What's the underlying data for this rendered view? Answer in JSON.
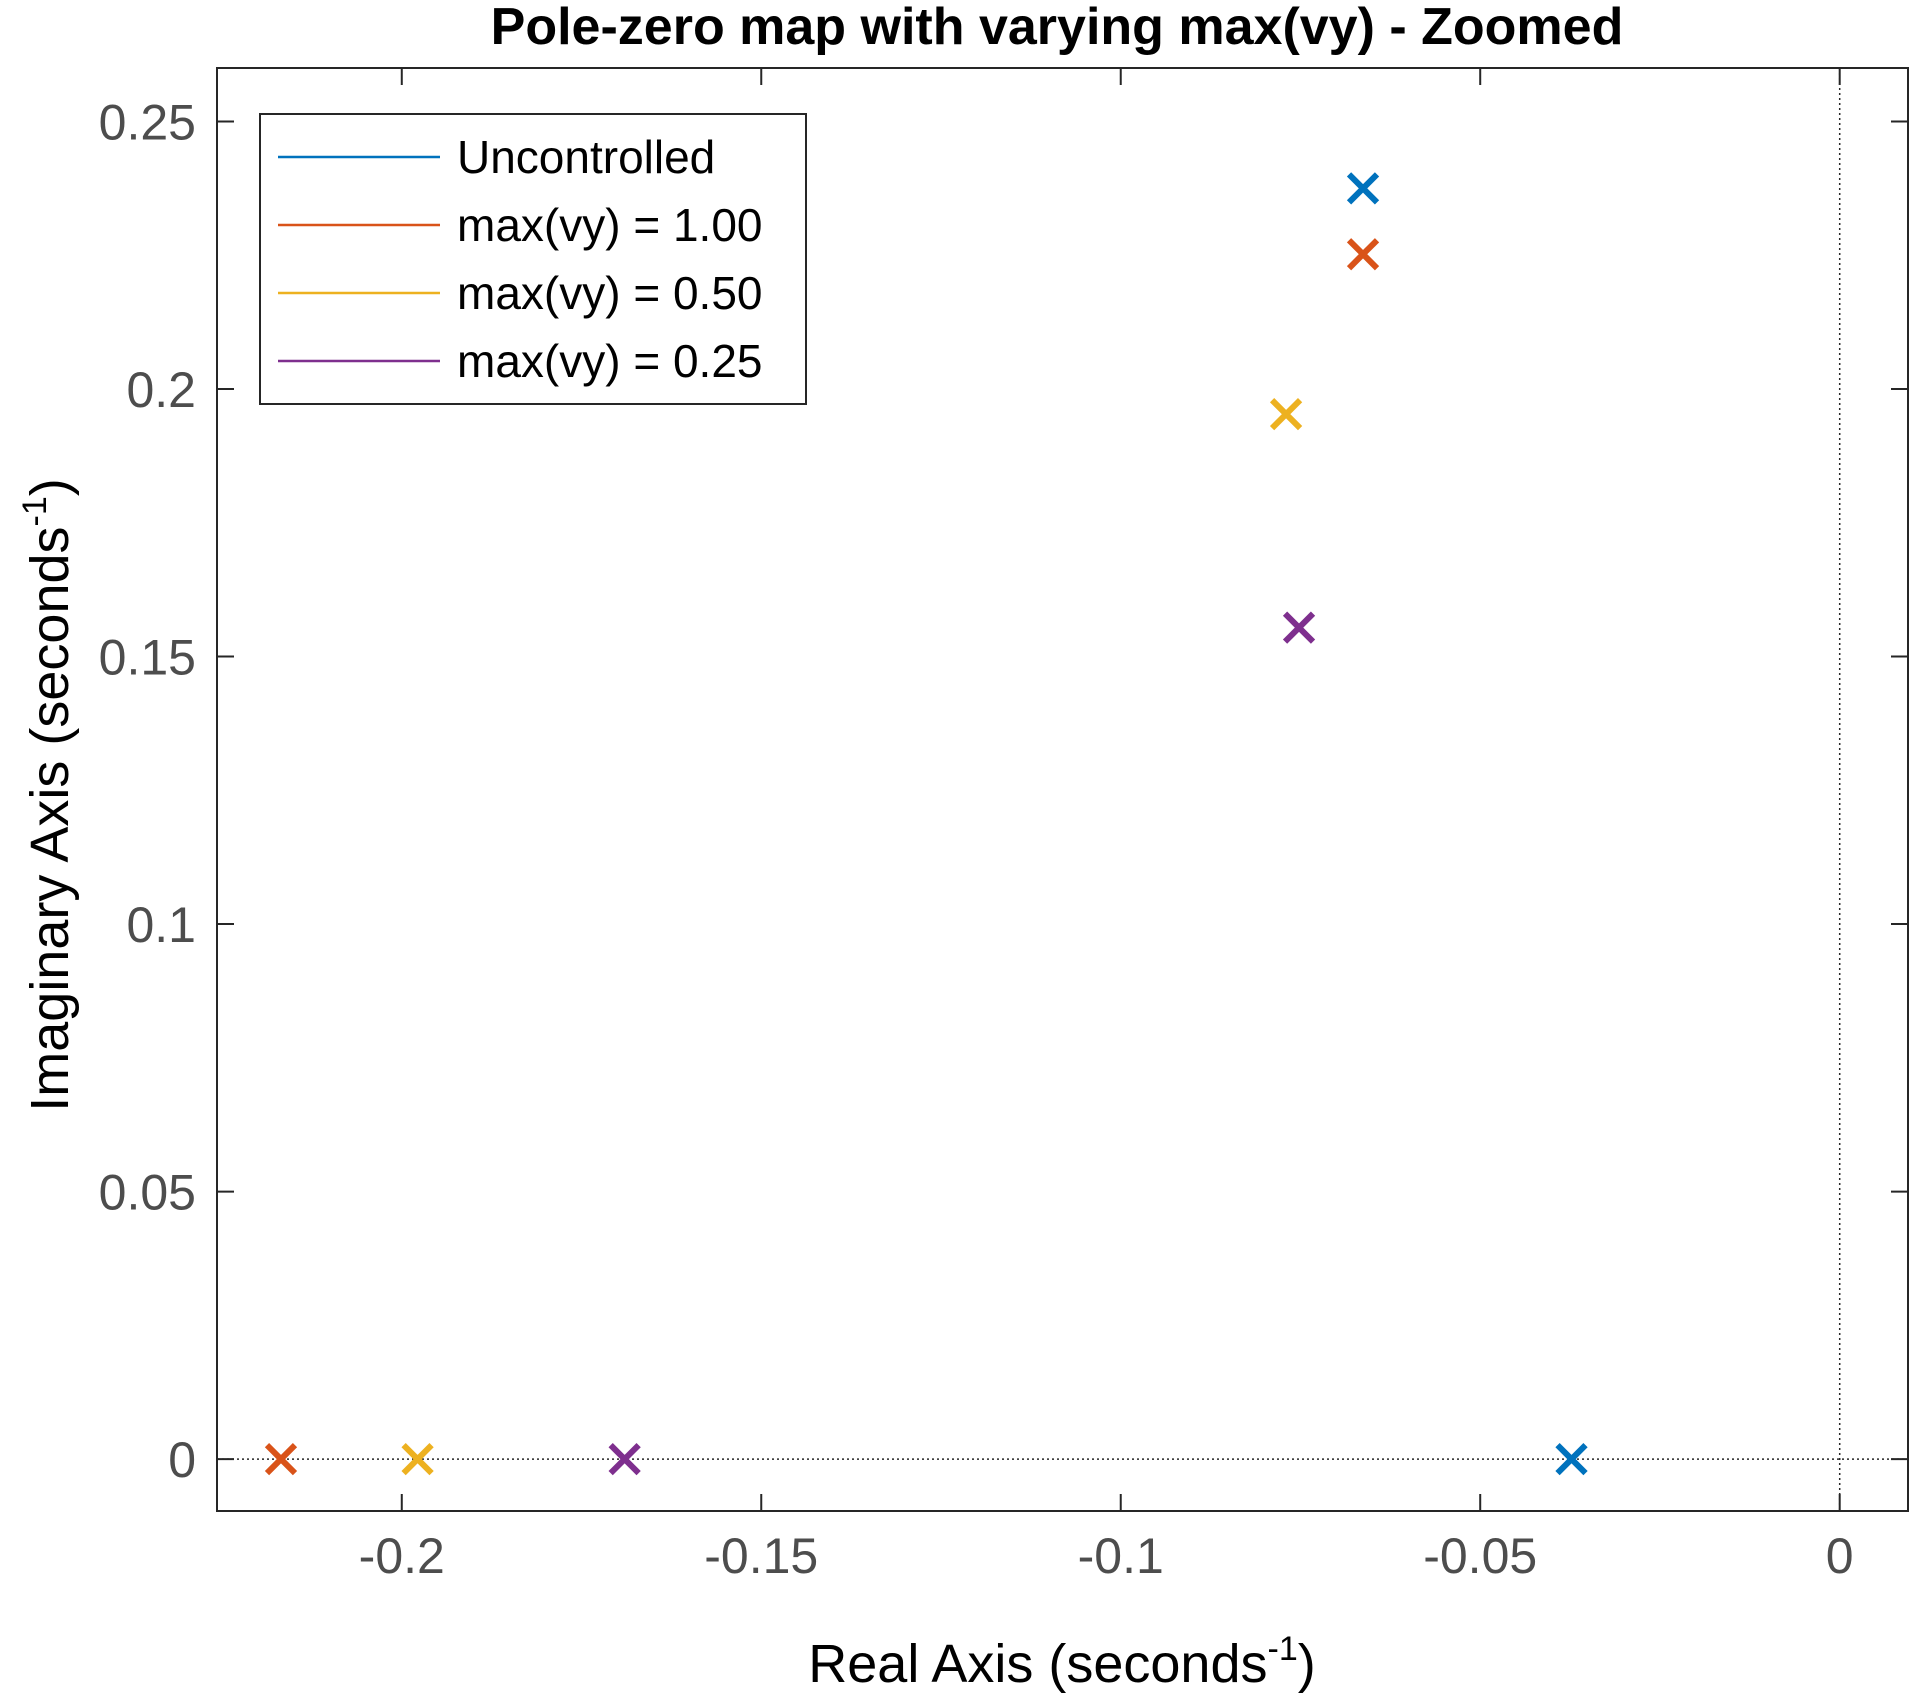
{
  "chart_data": {
    "type": "scatter",
    "title": "Pole-zero map with varying max(vy) - Zoomed",
    "xlabel": {
      "text": "Real Axis (seconds",
      "sup": "-1",
      "close": ")"
    },
    "ylabel": {
      "text": "Imaginary Axis (seconds",
      "sup": "-1",
      "close": ")"
    },
    "xlim": [
      -0.2257,
      0.0095
    ],
    "ylim": [
      -0.0097,
      0.26
    ],
    "xticks": [
      -0.2,
      -0.15,
      -0.1,
      -0.05,
      0
    ],
    "xtick_labels": [
      "-0.2",
      "-0.15",
      "-0.1",
      "-0.05",
      "0"
    ],
    "yticks": [
      0,
      0.05,
      0.1,
      0.15,
      0.2,
      0.25
    ],
    "ytick_labels": [
      "0",
      "0.05",
      "0.1",
      "0.15",
      "0.2",
      "0.25"
    ],
    "grid": false,
    "reference_lines": {
      "x0": true,
      "y0": true
    },
    "legend_position": "top-left",
    "marker": "x",
    "series": [
      {
        "name": "Uncontrolled",
        "color": "#0072bd",
        "points": [
          {
            "x": -0.0663,
            "y": 0.2375
          },
          {
            "x": -0.0373,
            "y": 0.0
          }
        ]
      },
      {
        "name": "max(vy) = 1.00",
        "color": "#d95319",
        "points": [
          {
            "x": -0.0663,
            "y": 0.2252
          },
          {
            "x": -0.2168,
            "y": 0.0
          }
        ]
      },
      {
        "name": "max(vy) = 0.50",
        "color": "#edb120",
        "points": [
          {
            "x": -0.077,
            "y": 0.1953
          },
          {
            "x": -0.1978,
            "y": 0.0
          }
        ]
      },
      {
        "name": "max(vy) = 0.25",
        "color": "#7e2f8e",
        "points": [
          {
            "x": -0.0752,
            "y": 0.1554
          },
          {
            "x": -0.169,
            "y": 0.0
          }
        ]
      }
    ]
  }
}
